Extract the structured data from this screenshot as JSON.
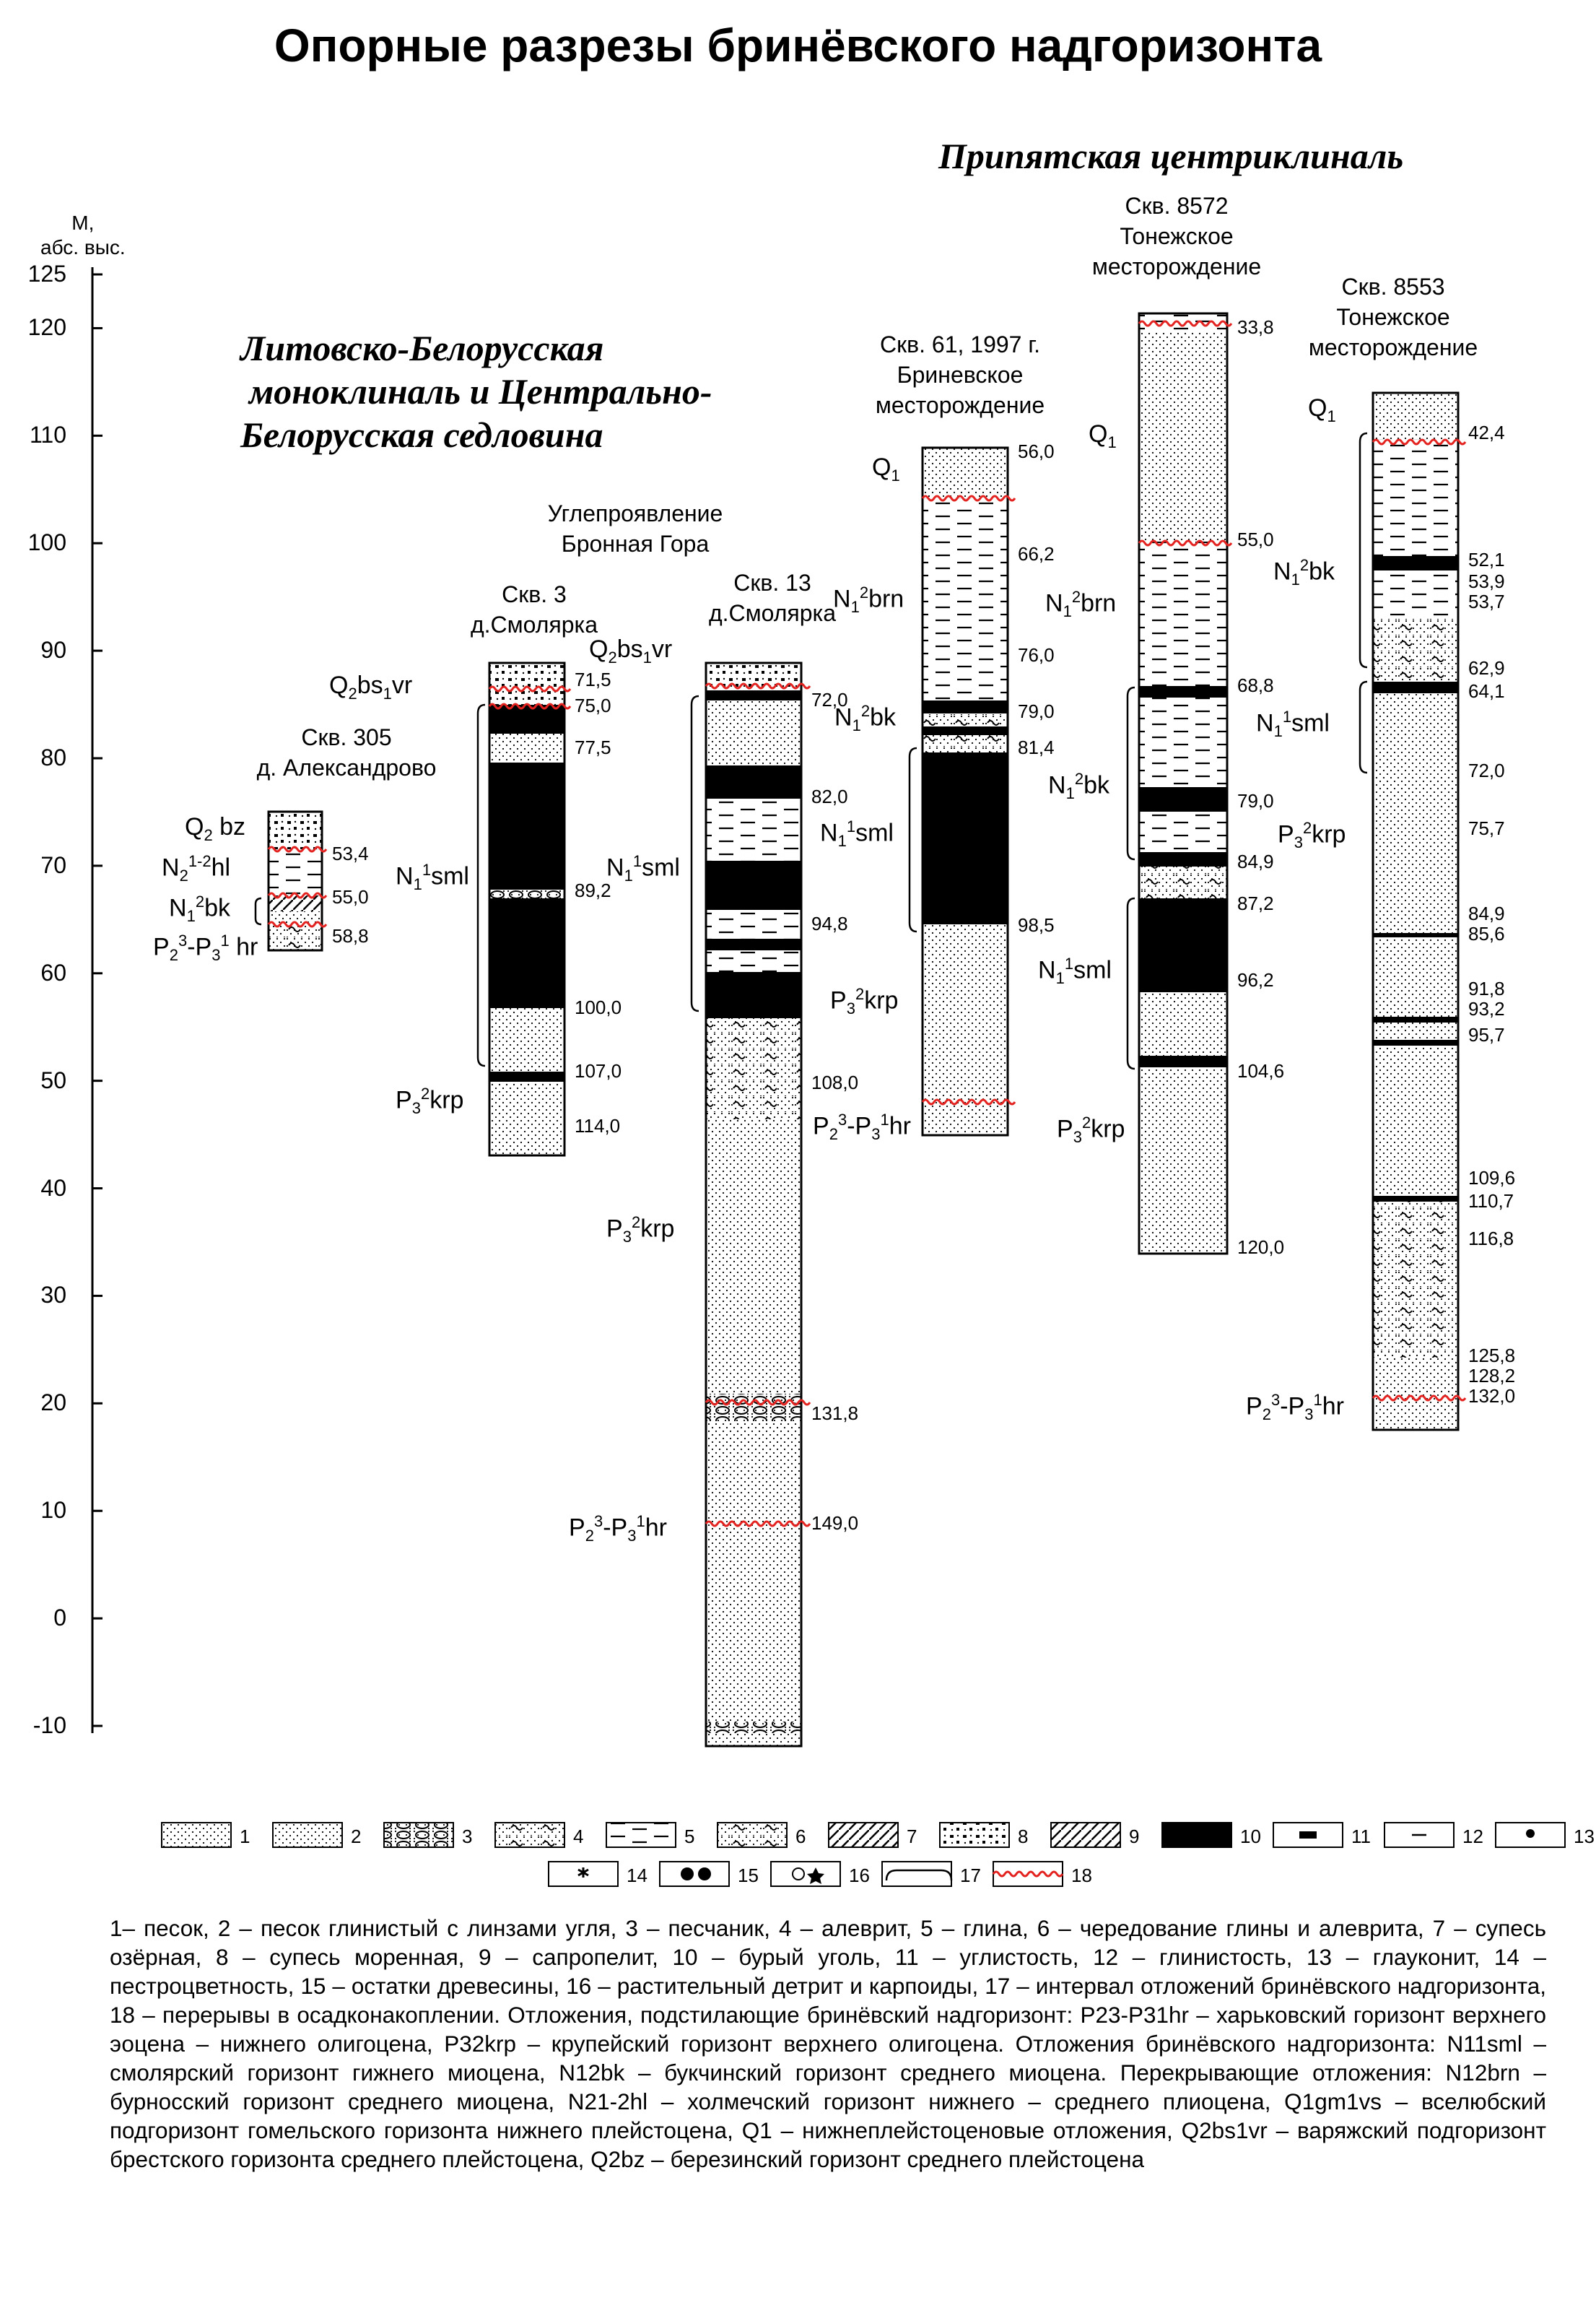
{
  "title": "Опорные разрезы бринёвского надгоризонта",
  "regions": {
    "left": [
      "Литовско-Белорусская",
      "моноклиналь и Центрально-",
      "Белорусская седловина"
    ],
    "right": "Припятская центриклиналь",
    "coal_site": [
      "Углепроявление",
      "Бронная Гора"
    ]
  },
  "axis": {
    "unit_line1": "М,",
    "unit_line2": "абс. выс.",
    "ticks": [
      "125",
      "120",
      "110",
      "100",
      "90",
      "80",
      "70",
      "60",
      "50",
      "40",
      "30",
      "20",
      "10",
      "0",
      "-10"
    ]
  },
  "wells": [
    {
      "caption": [
        "Скв. 305",
        "д. Александрово"
      ],
      "depths": [
        "53,4",
        "55,0",
        "58,8"
      ],
      "strat": [
        "Q2bz",
        "N21-2hl",
        "N12bk",
        "P23-P31hr"
      ]
    },
    {
      "caption": [
        "Скв. 3",
        "д.Смолярка"
      ],
      "depths": [
        "71,5",
        "75,0",
        "77,5",
        "89,2",
        "100,0",
        "107,0",
        "114,0"
      ],
      "strat": [
        "Q2bs1vr",
        "N11sml",
        "P32krp"
      ]
    },
    {
      "caption": [
        "Скв. 13",
        "д.Смолярка"
      ],
      "depths": [
        "72,0",
        "82,0",
        "94,8",
        "108,0",
        "131,8",
        "149,0"
      ],
      "strat": [
        "Q2bs1vr",
        "N11sml",
        "P32krp",
        "P23-P31hr"
      ]
    },
    {
      "caption": [
        "Скв. 61, 1997 г.",
        "Бриневское",
        "месторождение"
      ],
      "depths": [
        "56,0",
        "66,2",
        "76,0",
        "79,0",
        "81,4",
        "98,5"
      ],
      "strat": [
        "Q1",
        "N12brn",
        "N12bk",
        "N11sml",
        "P32krp",
        "P23-P31hr"
      ]
    },
    {
      "caption": [
        "Скв. 8572",
        "Тонежское",
        "месторождение"
      ],
      "depths": [
        "33,8",
        "55,0",
        "68,8",
        "79,0",
        "84,9",
        "87,2",
        "96,2",
        "104,6",
        "120,0"
      ],
      "strat": [
        "Q1",
        "N12brn",
        "N12bk",
        "N11sml",
        "P32krp"
      ]
    },
    {
      "caption": [
        "Скв. 8553",
        "Тонежское",
        "месторождение"
      ],
      "depths": [
        "42,4",
        "52,1",
        "53,9",
        "53,7",
        "62,9",
        "64,1",
        "72,0",
        "75,7",
        "84,9",
        "85,6",
        "91,8",
        "93,2",
        "95,7",
        "109,6",
        "110,7",
        "116,8",
        "125,8",
        "128,2",
        "132,0"
      ],
      "strat": [
        "Q1",
        "N12bk",
        "N11sml",
        "P32krp",
        "P23-P31hr"
      ]
    }
  ],
  "legend": {
    "numbers": [
      "1",
      "2",
      "3",
      "4",
      "5",
      "6",
      "7",
      "8",
      "9",
      "10",
      "11",
      "12",
      "13",
      "14",
      "15",
      "16",
      "17",
      "18"
    ]
  },
  "description": "1– песок, 2 – песок глинистый с линзами угля, 3 – песчаник, 4 – алеврит, 5 – глина, 6 – чередование глины и алеврита, 7 – супесь озёрная, 8 – супесь моренная, 9 – сапропелит, 10 – бурый уголь, 11 – углистость, 12 – глинистость, 13 – глауконит, 14 – пестроцветность, 15 – остатки древесины, 16 – растительный детрит и карпоиды, 17 – интервал отложений бринёвского надгоризонта, 18 – перерывы в осадконакоплении. Отложения, подстилающие бринёвский надгоризонт: P23-P31hr – харьковский горизонт верхнего эоцена – нижнего олигоцена, P32krp – крупейский горизонт верхнего олигоцена. Отложения бринёвского надгоризонта: N11sml – смолярский горизонт гижнего миоцена, N12bk – букчинский горизонт среднего миоцена. Перекрывающие отложения: N12brn – бурносский горизонт среднего миоцена, N21-2hl – холмечский горизонт нижнего – среднего плиоцена, Q1gm1vs – вселюбский подгоризонт гомельского горизонта нижнего плейстоцена, Q1 – нижнеплейстоценовые отложения, Q2bs1vr – варяжский подгоризонт брестского горизонта среднего плейстоцена, Q2bz – березинский горизонт среднего плейстоцена"
}
